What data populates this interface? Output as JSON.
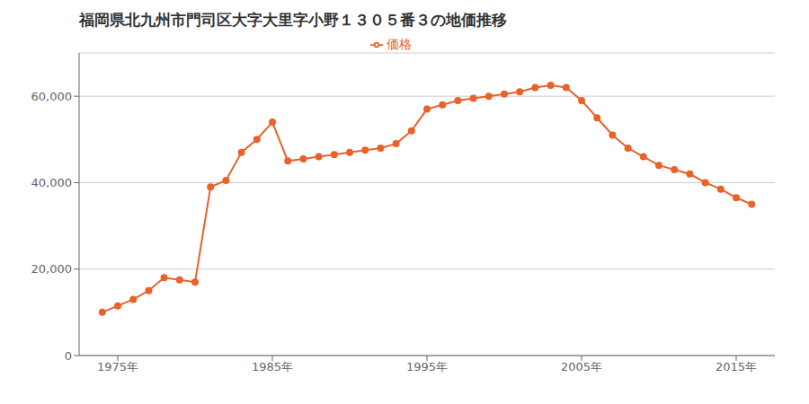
{
  "chart_data": {
    "type": "line",
    "title": "福岡県北九州市門司区大字大里字小野１３０５番３の地価推移",
    "x": [
      1974,
      1975,
      1976,
      1977,
      1978,
      1979,
      1980,
      1981,
      1982,
      1983,
      1984,
      1985,
      1986,
      1987,
      1988,
      1989,
      1990,
      1991,
      1992,
      1993,
      1994,
      1995,
      1996,
      1997,
      1998,
      1999,
      2000,
      2001,
      2002,
      2003,
      2004,
      2005,
      2006,
      2007,
      2008,
      2009,
      2010,
      2011,
      2012,
      2013,
      2014,
      2015,
      2016
    ],
    "series": [
      {
        "name": "価格",
        "color": "#E8622A",
        "marker": "circle",
        "values": [
          10000,
          11500,
          13000,
          15000,
          18000,
          17500,
          17000,
          39000,
          40500,
          47000,
          50000,
          54000,
          45000,
          45500,
          46000,
          46500,
          47000,
          47500,
          48000,
          49000,
          52000,
          57000,
          58000,
          59000,
          59500,
          60000,
          60500,
          61000,
          62000,
          62500,
          62000,
          59000,
          55000,
          51000,
          48000,
          46000,
          44000,
          43000,
          42000,
          40000,
          38500,
          36500,
          35000
        ]
      }
    ],
    "xlim": [
      1972.5,
      2017.5
    ],
    "xticks": [
      {
        "value": 1975,
        "label": "1975年"
      },
      {
        "value": 1985,
        "label": "1985年"
      },
      {
        "value": 1995,
        "label": "1995年"
      },
      {
        "value": 2005,
        "label": "2005年"
      },
      {
        "value": 2015,
        "label": "2015年"
      }
    ],
    "ylim": [
      0,
      70000
    ],
    "yticks": [
      0,
      {
        "value": 20000,
        "label": "20,000"
      },
      {
        "value": 40000,
        "label": "40,000"
      },
      {
        "value": 60000,
        "label": "60,000"
      }
    ],
    "grid": "y",
    "legend": "top"
  }
}
